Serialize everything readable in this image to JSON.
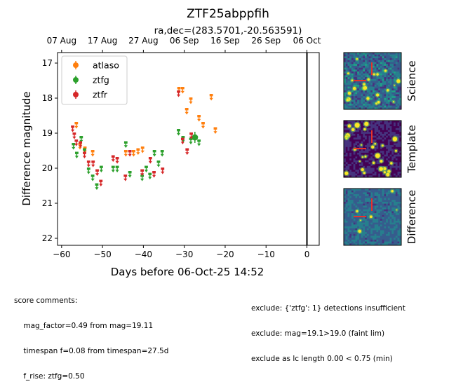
{
  "figure": {
    "title": "ZTF25abppfih",
    "subtitle": "ra,dec=(283.5701,-20.563591)"
  },
  "chart_data": {
    "type": "scatter",
    "xlabel": "Days before 06-Oct-25 14:52",
    "ylabel": "Difference magnitude",
    "xlim": [
      -61,
      3
    ],
    "ylim": [
      22.2,
      16.7
    ],
    "y_inverted": true,
    "x_ticks": [
      -60,
      -50,
      -40,
      -30,
      -20,
      -10,
      0
    ],
    "y_ticks": [
      17,
      18,
      19,
      20,
      21,
      22
    ],
    "top_ticks": [
      {
        "x": -60,
        "label": "07 Aug"
      },
      {
        "x": -50,
        "label": "17 Aug"
      },
      {
        "x": -40,
        "label": "27 Aug"
      },
      {
        "x": -30,
        "label": "06 Sep"
      },
      {
        "x": -20,
        "label": "16 Sep"
      },
      {
        "x": -10,
        "label": "26 Sep"
      },
      {
        "x": 0,
        "label": "06 Oct"
      }
    ],
    "vline_x": 0,
    "legend_location": "upper-left",
    "series": [
      {
        "name": "atlaso",
        "color": "#ff7f0e",
        "marker": "upper-limit-arrow",
        "points": [
          [
            -56.4,
            18.75
          ],
          [
            -55.5,
            19.35
          ],
          [
            -54.3,
            19.45
          ],
          [
            -52.4,
            19.55
          ],
          [
            -44.3,
            19.55
          ],
          [
            -42.4,
            19.55
          ],
          [
            -41.3,
            19.5
          ],
          [
            -40.2,
            19.45
          ],
          [
            -31.3,
            17.75
          ],
          [
            -30.4,
            17.75
          ],
          [
            -29.4,
            18.35
          ],
          [
            -28.4,
            18.05
          ],
          [
            -26.4,
            18.55
          ],
          [
            -25.4,
            18.75
          ],
          [
            -23.4,
            17.95
          ],
          [
            -22.4,
            18.9
          ]
        ]
      },
      {
        "name": "ztfg",
        "color": "#2ca02c",
        "marker": "upper-limit-arrow",
        "detections": [
          [
            -27.4,
            19.12
          ]
        ],
        "points": [
          [
            -57.1,
            19.35
          ],
          [
            -56.3,
            19.6
          ],
          [
            -55.2,
            19.15
          ],
          [
            -54.4,
            19.5
          ],
          [
            -53.4,
            20.05
          ],
          [
            -52.4,
            20.25
          ],
          [
            -51.4,
            20.5
          ],
          [
            -50.3,
            20.0
          ],
          [
            -47.4,
            20.0
          ],
          [
            -46.4,
            20.0
          ],
          [
            -44.3,
            19.3
          ],
          [
            -43.3,
            20.15
          ],
          [
            -40.3,
            20.25
          ],
          [
            -39.3,
            20.0
          ],
          [
            -38.4,
            20.2
          ],
          [
            -37.3,
            19.55
          ],
          [
            -36.3,
            19.85
          ],
          [
            -35.4,
            19.55
          ],
          [
            -31.4,
            18.95
          ],
          [
            -30.3,
            19.15
          ],
          [
            -28.4,
            19.2
          ],
          [
            -26.4,
            19.25
          ]
        ]
      },
      {
        "name": "ztfr",
        "color": "#d62728",
        "marker": "upper-limit-arrow",
        "points": [
          [
            -57.3,
            18.85
          ],
          [
            -56.9,
            19.05
          ],
          [
            -56.4,
            19.25
          ],
          [
            -55.4,
            19.3
          ],
          [
            -54.4,
            19.6
          ],
          [
            -53.4,
            19.85
          ],
          [
            -52.3,
            19.85
          ],
          [
            -51.3,
            20.1
          ],
          [
            -50.4,
            20.4
          ],
          [
            -47.4,
            19.7
          ],
          [
            -46.4,
            19.75
          ],
          [
            -44.4,
            20.25
          ],
          [
            -43.3,
            19.55
          ],
          [
            -40.3,
            20.1
          ],
          [
            -38.3,
            19.75
          ],
          [
            -37.4,
            20.15
          ],
          [
            -35.3,
            20.05
          ],
          [
            -31.4,
            17.85
          ],
          [
            -30.4,
            19.2
          ],
          [
            -29.3,
            19.5
          ],
          [
            -28.3,
            19.05
          ]
        ]
      }
    ]
  },
  "cutouts": [
    {
      "label": "Science"
    },
    {
      "label": "Template"
    },
    {
      "label": "Difference"
    }
  ],
  "comments": {
    "left": [
      "score comments:",
      "    mag_factor=0.49 from mag=19.11",
      "    timespan f=0.08 from timespan=27.5d",
      "    f_rise: ztfg=0.50"
    ],
    "right": [
      "exclude: {'ztfg': 1} detections insufficient",
      "exclude: mag=19.1>19.0 (faint lim)",
      "exclude as lc length 0.00 < 0.75 (min)"
    ]
  }
}
